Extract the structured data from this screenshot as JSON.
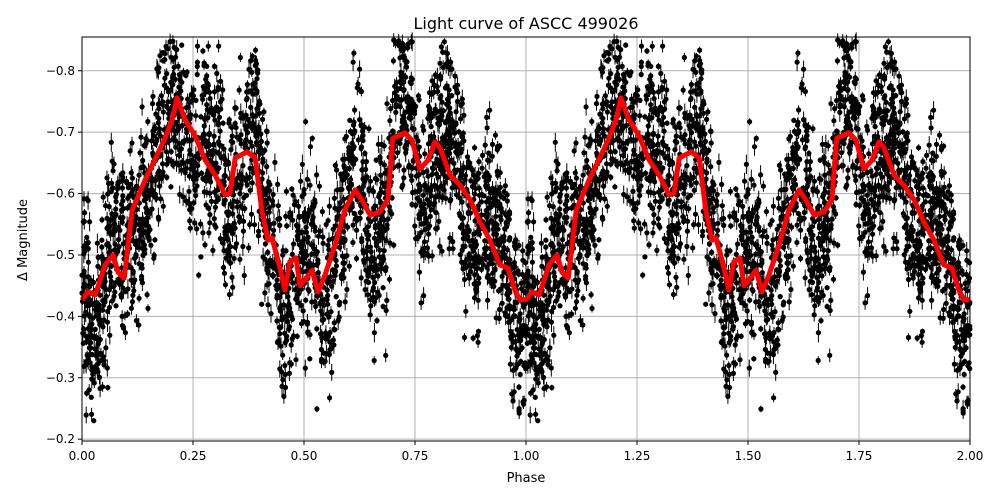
{
  "chart_data": {
    "type": "scatter",
    "title": "Light curve of ASCC 499026",
    "xlabel": "Phase",
    "ylabel": "Δ Magnitude",
    "xlim": [
      0,
      2
    ],
    "ylim": [
      -0.855,
      -0.197
    ],
    "y_inverted": true,
    "grid": true,
    "x_ticks": [
      "0.00",
      "0.25",
      "0.50",
      "0.75",
      "1.00",
      "1.25",
      "1.50",
      "1.75",
      "2.00"
    ],
    "y_ticks": [
      "−0.8",
      "−0.7",
      "−0.6",
      "−0.5",
      "−0.4",
      "−0.3",
      "−0.2"
    ],
    "colors": {
      "points": "#000000",
      "model": "#ff0000",
      "grid": "#b0b0b0"
    },
    "series": [
      {
        "kind": "scatter-with-errorbars",
        "color": "#000000",
        "note": "dense phased photometry, repeated over phase 0–2"
      },
      {
        "kind": "line",
        "color": "#ff0000",
        "repeat_period": 1,
        "x": [
          0,
          0.014,
          0.03,
          0.052,
          0.07,
          0.081,
          0.095,
          0.113,
          0.142,
          0.164,
          0.187,
          0.203,
          0.214,
          0.232,
          0.254,
          0.277,
          0.3,
          0.322,
          0.333,
          0.345,
          0.372,
          0.39,
          0.405,
          0.419,
          0.428,
          0.446,
          0.457,
          0.468,
          0.482,
          0.491,
          0.502,
          0.518,
          0.532,
          0.547,
          0.57,
          0.592,
          0.615,
          0.63,
          0.649,
          0.671,
          0.689,
          0.7,
          0.727,
          0.743,
          0.761,
          0.779,
          0.795,
          0.806,
          0.829,
          0.851,
          0.874,
          0.896,
          0.919,
          0.941,
          0.959,
          0.975,
          0.986,
          1.0
        ],
        "y": [
          -0.427,
          -0.44,
          -0.435,
          -0.484,
          -0.5,
          -0.472,
          -0.462,
          -0.573,
          -0.622,
          -0.655,
          -0.69,
          -0.72,
          -0.756,
          -0.72,
          -0.695,
          -0.655,
          -0.63,
          -0.598,
          -0.6,
          -0.658,
          -0.668,
          -0.658,
          -0.573,
          -0.524,
          -0.528,
          -0.479,
          -0.443,
          -0.489,
          -0.495,
          -0.45,
          -0.459,
          -0.475,
          -0.44,
          -0.467,
          -0.516,
          -0.573,
          -0.606,
          -0.59,
          -0.565,
          -0.57,
          -0.59,
          -0.69,
          -0.699,
          -0.687,
          -0.64,
          -0.654,
          -0.684,
          -0.675,
          -0.63,
          -0.614,
          -0.59,
          -0.554,
          -0.524,
          -0.484,
          -0.479,
          -0.443,
          -0.427,
          -0.427
        ]
      }
    ]
  }
}
